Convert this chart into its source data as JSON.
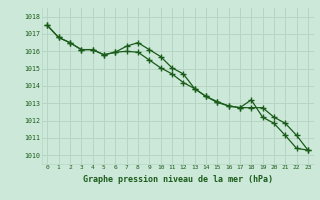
{
  "title": "Graphe pression niveau de la mer (hPa)",
  "bg_color": "#cce8d8",
  "grid_color": "#b8d4c4",
  "line_color": "#1a5c1a",
  "xlim": [
    -0.5,
    23.5
  ],
  "ylim": [
    1009.5,
    1018.5
  ],
  "yticks": [
    1010,
    1011,
    1012,
    1013,
    1014,
    1015,
    1016,
    1017,
    1018
  ],
  "xticks": [
    0,
    1,
    2,
    3,
    4,
    5,
    6,
    7,
    8,
    9,
    10,
    11,
    12,
    13,
    14,
    15,
    16,
    17,
    18,
    19,
    20,
    21,
    22,
    23
  ],
  "series1": [
    1017.5,
    1016.8,
    1016.5,
    1016.1,
    1016.1,
    1015.8,
    1015.95,
    1016.3,
    1016.5,
    1016.1,
    1015.7,
    1015.05,
    1014.7,
    1013.85,
    1013.4,
    1013.05,
    1012.85,
    1012.75,
    1013.2,
    1012.2,
    1011.85,
    1011.15,
    1010.4,
    1010.3
  ],
  "series2": [
    1017.5,
    1016.8,
    1016.5,
    1016.1,
    1016.1,
    1015.8,
    1015.95,
    1016.0,
    1015.95,
    1015.5,
    1015.05,
    1014.7,
    1014.2,
    1013.85,
    1013.4,
    1013.1,
    1012.85,
    1012.75,
    1012.75,
    1012.75,
    1012.2,
    1011.85,
    1011.15,
    1010.3
  ]
}
